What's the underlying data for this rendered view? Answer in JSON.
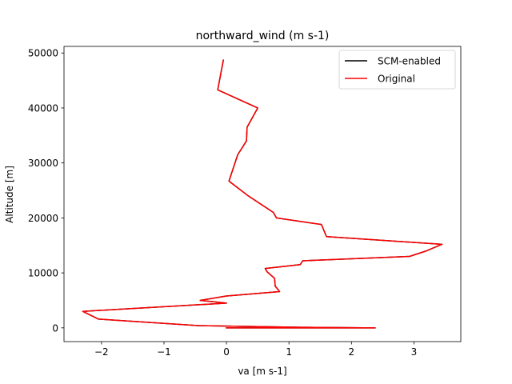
{
  "chart_data": {
    "type": "line",
    "title": "northward_wind (m s-1)",
    "xlabel": "va [m s-1]",
    "ylabel": "Altitude [m]",
    "xlim": [
      -2.6,
      3.75
    ],
    "ylim": [
      -2500,
      51200
    ],
    "xticks": [
      -2,
      -1,
      0,
      1,
      2,
      3
    ],
    "yticks": [
      0,
      10000,
      20000,
      30000,
      40000,
      50000
    ],
    "legend_position": "upper right",
    "grid": false,
    "series": [
      {
        "name": "SCM-enabled",
        "color": "#000000",
        "points": [
          [
            0.0,
            0
          ],
          [
            2.38,
            0
          ],
          [
            1.2,
            100
          ],
          [
            -0.43,
            400
          ],
          [
            -2.05,
            1600
          ],
          [
            -2.3,
            3000
          ],
          [
            0.0,
            4500
          ],
          [
            -0.42,
            5000
          ],
          [
            0.0,
            5800
          ],
          [
            0.85,
            6600
          ],
          [
            0.78,
            7600
          ],
          [
            0.77,
            9000
          ],
          [
            0.65,
            10200
          ],
          [
            0.62,
            10800
          ],
          [
            1.18,
            11500
          ],
          [
            1.22,
            12200
          ],
          [
            2.93,
            13000
          ],
          [
            3.2,
            14000
          ],
          [
            3.45,
            15200
          ],
          [
            1.6,
            16600
          ],
          [
            1.52,
            18800
          ],
          [
            0.8,
            20000
          ],
          [
            0.75,
            21000
          ],
          [
            0.35,
            24000
          ],
          [
            0.04,
            26700
          ],
          [
            0.18,
            31500
          ],
          [
            0.32,
            34000
          ],
          [
            0.33,
            36500
          ],
          [
            0.5,
            40000
          ],
          [
            -0.14,
            43300
          ],
          [
            -0.05,
            48700
          ]
        ]
      },
      {
        "name": "Original",
        "color": "#ff0000",
        "points": [
          [
            0.0,
            0
          ],
          [
            2.38,
            0
          ],
          [
            1.2,
            100
          ],
          [
            -0.43,
            400
          ],
          [
            -2.05,
            1600
          ],
          [
            -2.3,
            3000
          ],
          [
            0.0,
            4500
          ],
          [
            -0.42,
            5000
          ],
          [
            0.0,
            5800
          ],
          [
            0.85,
            6600
          ],
          [
            0.78,
            7600
          ],
          [
            0.77,
            9000
          ],
          [
            0.65,
            10200
          ],
          [
            0.62,
            10800
          ],
          [
            1.18,
            11500
          ],
          [
            1.22,
            12200
          ],
          [
            2.93,
            13000
          ],
          [
            3.2,
            14000
          ],
          [
            3.45,
            15200
          ],
          [
            1.6,
            16600
          ],
          [
            1.52,
            18800
          ],
          [
            0.8,
            20000
          ],
          [
            0.75,
            21000
          ],
          [
            0.35,
            24000
          ],
          [
            0.04,
            26700
          ],
          [
            0.18,
            31500
          ],
          [
            0.32,
            34000
          ],
          [
            0.33,
            36500
          ],
          [
            0.5,
            40000
          ],
          [
            -0.14,
            43300
          ],
          [
            -0.05,
            48700
          ]
        ]
      }
    ]
  }
}
